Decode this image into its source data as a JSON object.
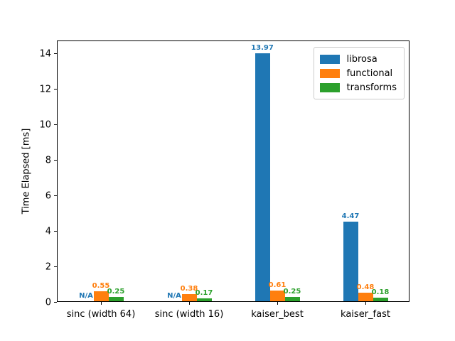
{
  "chart_data": {
    "type": "bar",
    "title": "",
    "xlabel": "",
    "ylabel": "Time Elapsed [ms]",
    "categories": [
      "sinc (width 64)",
      "sinc (width 16)",
      "kaiser_best",
      "kaiser_fast"
    ],
    "series": [
      {
        "name": "librosa",
        "color": "#1f77b4",
        "values": [
          null,
          null,
          13.97,
          4.47
        ],
        "value_labels": [
          "N/A",
          "N/A",
          "13.97",
          "4.47"
        ]
      },
      {
        "name": "functional",
        "color": "#ff7f0e",
        "values": [
          0.55,
          0.38,
          0.61,
          0.48
        ],
        "value_labels": [
          "0.55",
          "0.38",
          "0.61",
          "0.48"
        ]
      },
      {
        "name": "transforms",
        "color": "#2ca02c",
        "values": [
          0.25,
          0.17,
          0.25,
          0.18
        ],
        "value_labels": [
          "0.25",
          "0.17",
          "0.25",
          "0.18"
        ]
      }
    ],
    "yticks": [
      0,
      2,
      4,
      6,
      8,
      10,
      12,
      14
    ],
    "ylim": [
      0,
      14.72
    ],
    "grid": false,
    "legend": {
      "position": "upper right",
      "entries": [
        "librosa",
        "functional",
        "transforms"
      ]
    },
    "colors": {
      "background": "#ffffff",
      "axis": "#000000",
      "text": "#000000"
    }
  }
}
